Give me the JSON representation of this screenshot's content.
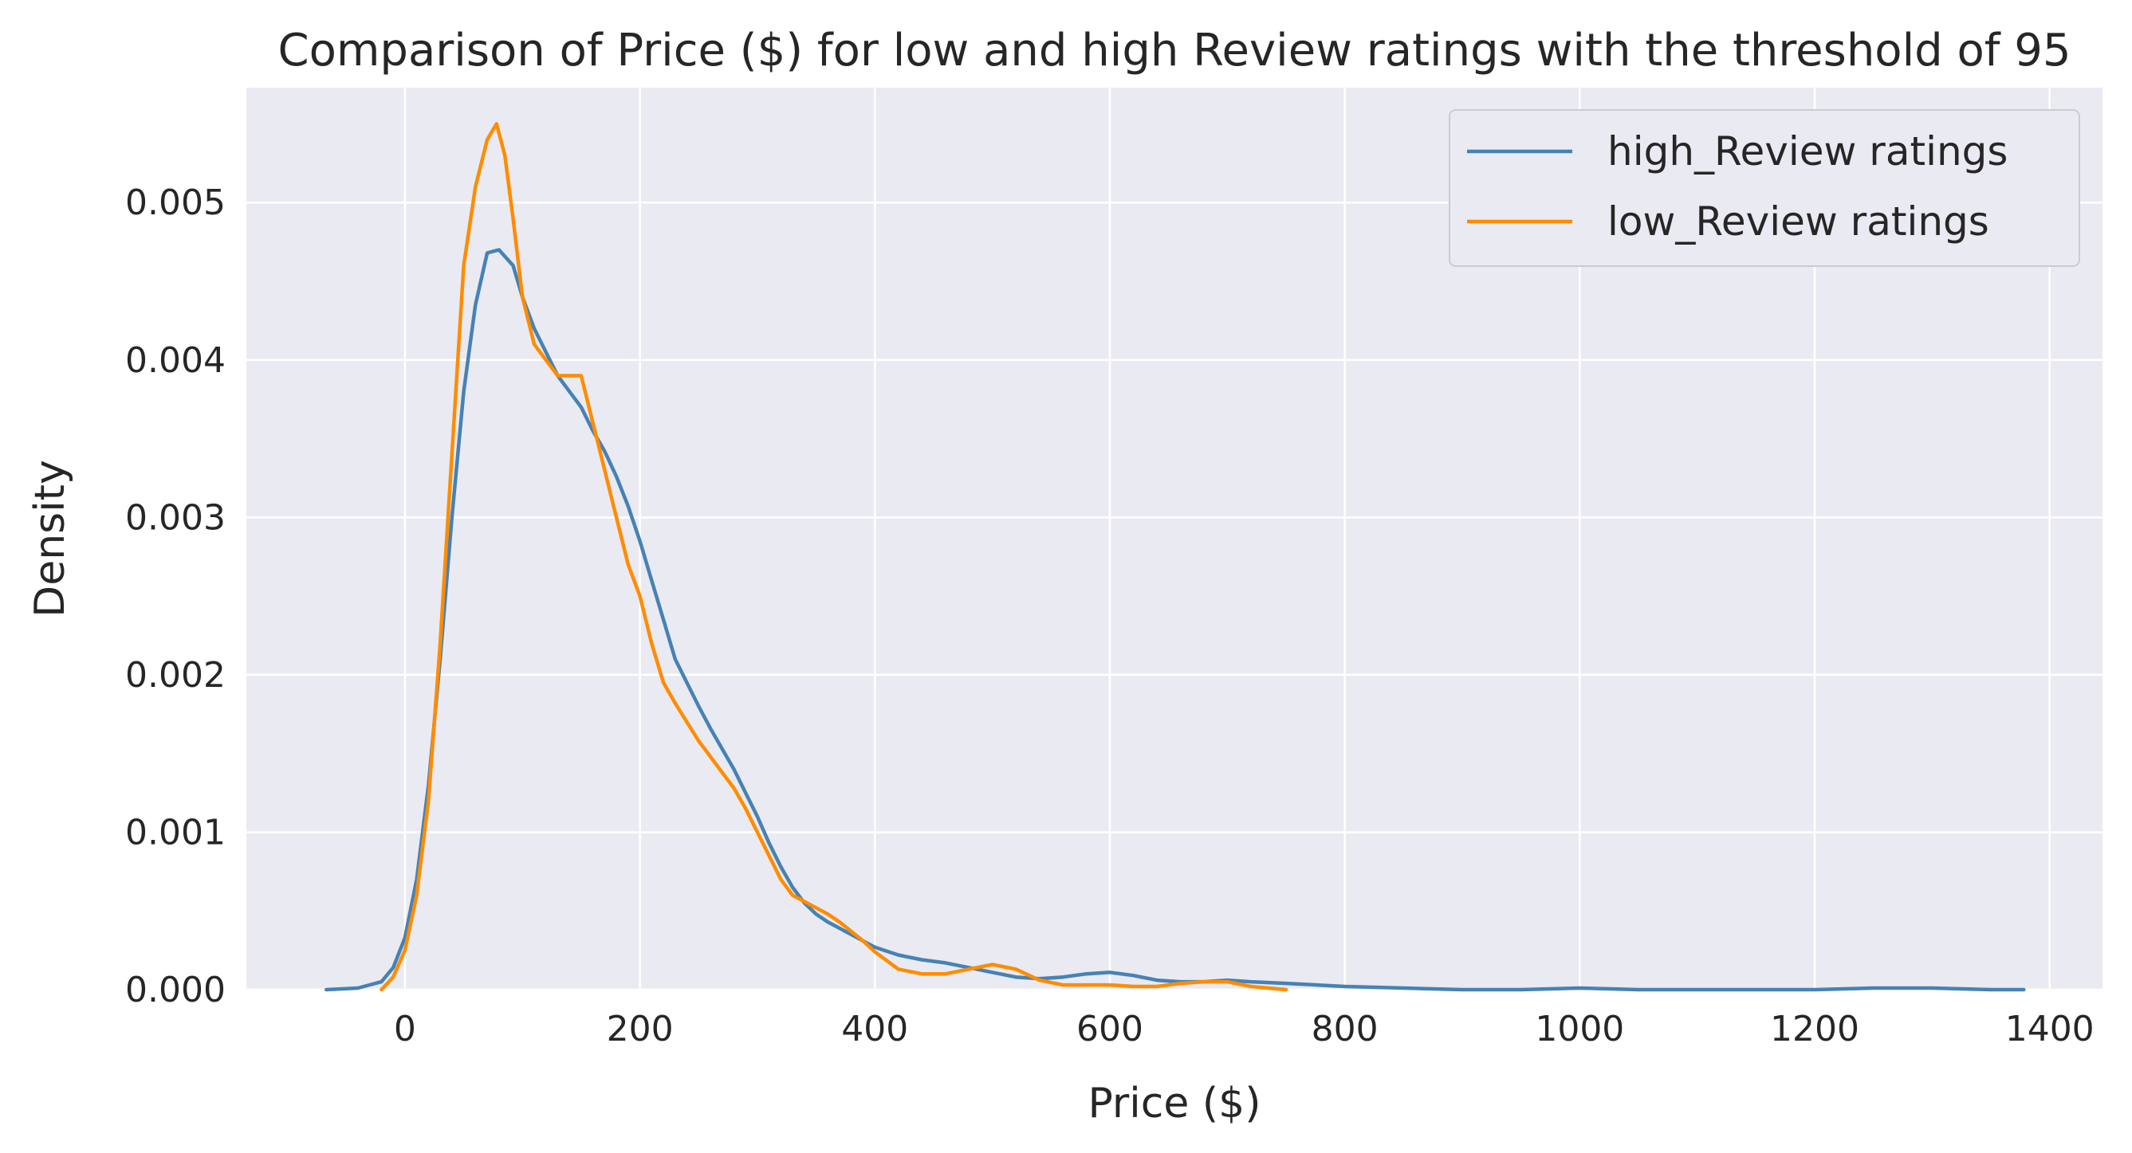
{
  "chart_data": {
    "type": "line",
    "title": "Comparison of Price ($) for low and high Review ratings with the threshold of 95",
    "xlabel": "Price ($)",
    "ylabel": "Density",
    "xlim": [
      -135,
      1445
    ],
    "ylim": [
      0,
      0.00573
    ],
    "grid": true,
    "legend_position": "top-right",
    "x_ticks": [
      0,
      200,
      400,
      600,
      800,
      1000,
      1200,
      1400
    ],
    "y_ticks": [
      0.0,
      0.001,
      0.002,
      0.003,
      0.004,
      0.005
    ],
    "x_tick_labels": [
      "0",
      "200",
      "400",
      "600",
      "800",
      "1000",
      "1200",
      "1400"
    ],
    "y_tick_labels": [
      "0.000",
      "0.001",
      "0.002",
      "0.003",
      "0.004",
      "0.005"
    ],
    "series": [
      {
        "name": "high_Review ratings",
        "color": "#4682b4",
        "x": [
          -67,
          -40,
          -20,
          -10,
          0,
          10,
          20,
          30,
          40,
          50,
          60,
          70,
          80,
          92,
          100,
          110,
          120,
          130,
          140,
          150,
          160,
          170,
          180,
          190,
          200,
          210,
          220,
          230,
          240,
          250,
          260,
          270,
          280,
          290,
          300,
          310,
          320,
          330,
          340,
          350,
          360,
          370,
          380,
          390,
          400,
          420,
          440,
          460,
          480,
          500,
          520,
          540,
          560,
          580,
          600,
          620,
          640,
          660,
          680,
          700,
          720,
          750,
          800,
          850,
          900,
          950,
          1000,
          1050,
          1100,
          1150,
          1200,
          1250,
          1300,
          1350,
          1378
        ],
        "y": [
          0.0,
          1e-05,
          5e-05,
          0.00014,
          0.00033,
          0.0007,
          0.0013,
          0.0021,
          0.003,
          0.0038,
          0.00435,
          0.00468,
          0.0047,
          0.0046,
          0.0044,
          0.0042,
          0.00405,
          0.0039,
          0.0038,
          0.0037,
          0.00355,
          0.00342,
          0.00326,
          0.00307,
          0.00285,
          0.0026,
          0.00235,
          0.0021,
          0.00195,
          0.0018,
          0.00166,
          0.00153,
          0.0014,
          0.00125,
          0.0011,
          0.00093,
          0.00078,
          0.00065,
          0.00055,
          0.00048,
          0.00043,
          0.00039,
          0.00035,
          0.00031,
          0.00027,
          0.00022,
          0.00019,
          0.00017,
          0.00014,
          0.00011,
          8e-05,
          7e-05,
          8e-05,
          0.0001,
          0.00011,
          9e-05,
          6e-05,
          5e-05,
          5e-05,
          6e-05,
          5e-05,
          4e-05,
          2e-05,
          1e-05,
          0.0,
          0.0,
          1e-05,
          0.0,
          0.0,
          0.0,
          0.0,
          1e-05,
          1e-05,
          0.0,
          0.0
        ]
      },
      {
        "name": "low_Review ratings",
        "color": "#ff8c00",
        "x": [
          -20,
          -10,
          0,
          10,
          20,
          30,
          40,
          50,
          60,
          70,
          78,
          85,
          92,
          100,
          110,
          120,
          130,
          140,
          150,
          160,
          170,
          180,
          190,
          200,
          210,
          220,
          230,
          240,
          250,
          260,
          270,
          280,
          290,
          300,
          310,
          320,
          330,
          340,
          350,
          360,
          370,
          380,
          390,
          400,
          420,
          440,
          460,
          480,
          500,
          520,
          540,
          560,
          580,
          600,
          620,
          640,
          660,
          680,
          700,
          720,
          750
        ],
        "y": [
          0.0,
          8e-05,
          0.00025,
          0.0006,
          0.0012,
          0.0022,
          0.0034,
          0.0046,
          0.0051,
          0.0054,
          0.0055,
          0.0053,
          0.0049,
          0.0044,
          0.0041,
          0.004,
          0.0039,
          0.0039,
          0.0039,
          0.0036,
          0.0033,
          0.003,
          0.0027,
          0.0025,
          0.0022,
          0.00195,
          0.00182,
          0.0017,
          0.00158,
          0.00148,
          0.00138,
          0.00128,
          0.00115,
          0.001,
          0.00085,
          0.0007,
          0.0006,
          0.00056,
          0.00052,
          0.00048,
          0.00043,
          0.00037,
          0.00031,
          0.00024,
          0.00013,
          0.0001,
          0.0001,
          0.00013,
          0.00016,
          0.00013,
          6e-05,
          3e-05,
          3e-05,
          3e-05,
          2e-05,
          2e-05,
          4e-05,
          5e-05,
          5e-05,
          2e-05,
          0.0
        ]
      }
    ]
  }
}
